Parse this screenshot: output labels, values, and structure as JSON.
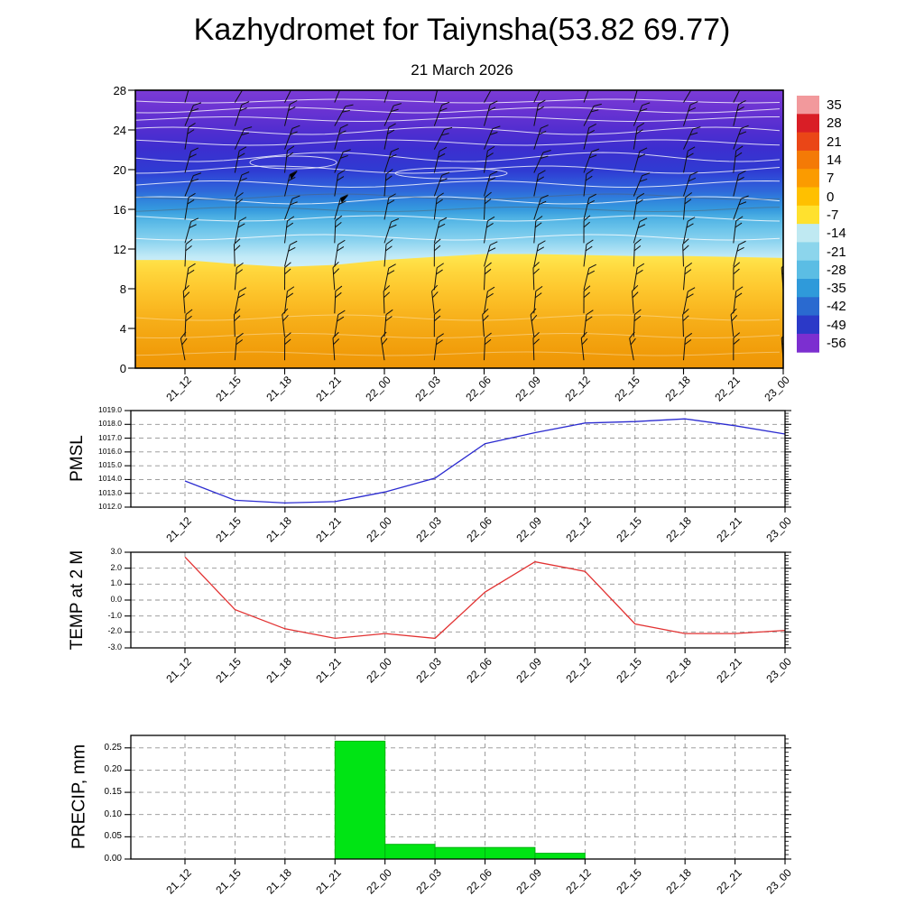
{
  "header": {
    "title": "Kazhydromet for Taiynsha(53.82 69.77)",
    "subtitle": "21 March 2026"
  },
  "chart_data": {
    "time_labels": [
      "21_12",
      "21_15",
      "21_18",
      "21_21",
      "22_00",
      "22_03",
      "22_06",
      "22_09",
      "22_12",
      "22_15",
      "22_18",
      "22_21",
      "23_00"
    ],
    "colorbar": {
      "values": [
        "35",
        "28",
        "21",
        "14",
        "7",
        "0",
        "-7",
        "-14",
        "-21",
        "-28",
        "-35",
        "-42",
        "-49",
        "-56"
      ],
      "colors": [
        "#f2999c",
        "#d91e26",
        "#ea4617",
        "#f47a06",
        "#fb9b00",
        "#ffc000",
        "#ffe12e",
        "#bfe9f2",
        "#8cd5ec",
        "#5bbde4",
        "#2f9ada",
        "#2a6ad0",
        "#2b39c8",
        "#7c2fd0"
      ]
    },
    "panels": [
      {
        "id": "cross-section",
        "type": "heatmap",
        "ylabel": "",
        "description": "Time-height temperature shading with wind barbs; warm orange-yellow layer below level ~11, cold cyan-blue-purple air above, white contour lines aloft",
        "y_ticks": [
          "28",
          "24",
          "20",
          "16",
          "12",
          "8",
          "4",
          "0"
        ],
        "y_range": [
          0,
          28
        ],
        "warm_boundary_levels": [
          10.9,
          10.5,
          10.2,
          10.4,
          10.9,
          11.2,
          11.5,
          11.5,
          11.4,
          11.3,
          11.3,
          11.2,
          11.1
        ],
        "wind_barb_columns": 13,
        "wind_barb_rows": 12,
        "cold_stops": [
          [
            0,
            "#7b3bd6"
          ],
          [
            0.07,
            "#6a33d2"
          ],
          [
            0.14,
            "#532ed0"
          ],
          [
            0.21,
            "#3c2ecf"
          ],
          [
            0.29,
            "#2f3bd2"
          ],
          [
            0.32,
            "#2f4fd8"
          ],
          [
            0.36,
            "#2f66da"
          ],
          [
            0.39,
            "#2f80dc"
          ],
          [
            0.43,
            "#359ade"
          ],
          [
            0.46,
            "#4fb2e4"
          ],
          [
            0.5,
            "#6cc4ea"
          ],
          [
            0.54,
            "#8ad2ef"
          ],
          [
            0.57,
            "#a6def3"
          ],
          [
            0.6,
            "#c2eaf7"
          ],
          [
            0.66,
            "#d9f2fa"
          ],
          [
            1,
            "#e8f7fc"
          ]
        ],
        "warm_stops": [
          [
            0,
            "#ffe84f"
          ],
          [
            0.15,
            "#ffd63c"
          ],
          [
            0.35,
            "#fdc32a"
          ],
          [
            0.6,
            "#f6ad18"
          ],
          [
            0.85,
            "#f19d0a"
          ],
          [
            1,
            "#ee9506"
          ]
        ]
      },
      {
        "id": "pmsl",
        "type": "line",
        "ylabel": "PMSL",
        "color": "#2b2bd0",
        "y_ticks": [
          "1019.0",
          "1018.0",
          "1017.0",
          "1016.0",
          "1015.0",
          "1014.0",
          "1013.0",
          "1012.0"
        ],
        "y_range": [
          1012.0,
          1019.0
        ],
        "values": [
          1013.9,
          1012.5,
          1012.3,
          1012.4,
          1013.1,
          1014.1,
          1016.6,
          1017.4,
          1018.1,
          1018.2,
          1018.4,
          1017.9,
          1017.3
        ]
      },
      {
        "id": "temp2m",
        "type": "line",
        "ylabel": "TEMP at 2 M",
        "color": "#e23232",
        "y_ticks": [
          "3.0",
          "2.0",
          "1.0",
          "0.0",
          "-1.0",
          "-2.0",
          "-3.0"
        ],
        "y_range": [
          -3.0,
          3.0
        ],
        "values": [
          2.7,
          -0.6,
          -1.8,
          -2.4,
          -2.1,
          -2.4,
          0.5,
          2.4,
          1.8,
          -1.5,
          -2.1,
          -2.1,
          -1.9
        ]
      },
      {
        "id": "precip",
        "type": "bar",
        "ylabel": "PRECIP, mm",
        "color": "#00e414",
        "edge_color": "#00b40e",
        "y_ticks": [
          "0.25",
          "0.20",
          "0.15",
          "0.10",
          "0.05",
          "0.00"
        ],
        "y_range": [
          0,
          0.278
        ],
        "interval_values": [
          0,
          0,
          0,
          0.265,
          0.033,
          0.026,
          0.026,
          0.013,
          0,
          0,
          0,
          0
        ]
      }
    ]
  }
}
